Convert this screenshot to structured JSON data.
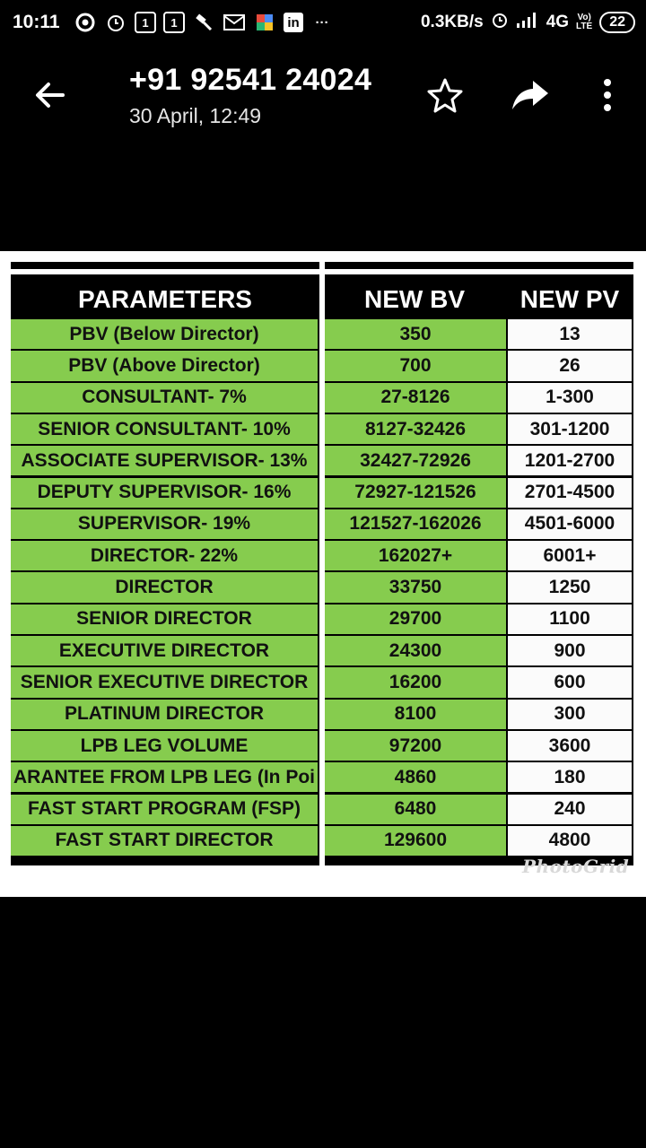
{
  "status_bar": {
    "time": "10:11",
    "box_icon_1": "1",
    "box_icon_2": "1",
    "linkedin": "in",
    "more": "···",
    "speed": "0.3KB/s",
    "network": "4G",
    "lte_top": "Vo)",
    "lte_bottom": "LTE",
    "battery": "22"
  },
  "app_bar": {
    "title": "+91 92541 24024",
    "subtitle": "30 April, 12:49"
  },
  "table": {
    "headers": {
      "parameters": "PARAMETERS",
      "new_bv": "NEW BV",
      "new_pv": "NEW PV"
    },
    "rows": [
      {
        "param": "PBV (Below Director)",
        "bv": "350",
        "pv": "13"
      },
      {
        "param": "PBV (Above Director)",
        "bv": "700",
        "pv": "26"
      },
      {
        "param": "CONSULTANT- 7%",
        "bv": "27-8126",
        "pv": "1-300"
      },
      {
        "param": "SENIOR CONSULTANT- 10%",
        "bv": "8127-32426",
        "pv": "301-1200"
      },
      {
        "param": "ASSOCIATE SUPERVISOR- 13%",
        "bv": "32427-72926",
        "pv": "1201-2700"
      },
      {
        "param": "DEPUTY SUPERVISOR- 16%",
        "bv": "72927-121526",
        "pv": "2701-4500"
      },
      {
        "param": "SUPERVISOR- 19%",
        "bv": "121527-162026",
        "pv": "4501-6000"
      },
      {
        "param": "DIRECTOR- 22%",
        "bv": "162027+",
        "pv": "6001+"
      },
      {
        "param": "DIRECTOR",
        "bv": "33750",
        "pv": "1250"
      },
      {
        "param": "SENIOR DIRECTOR",
        "bv": "29700",
        "pv": "1100"
      },
      {
        "param": "EXECUTIVE DIRECTOR",
        "bv": "24300",
        "pv": "900"
      },
      {
        "param": "SENIOR EXECUTIVE DIRECTOR",
        "bv": "16200",
        "pv": "600"
      },
      {
        "param": "PLATINUM DIRECTOR",
        "bv": "8100",
        "pv": "300"
      },
      {
        "param": "LPB LEG VOLUME",
        "bv": "97200",
        "pv": "3600"
      },
      {
        "param": "ARANTEE FROM LPB LEG (In Poi",
        "bv": "4860",
        "pv": "180"
      },
      {
        "param": "FAST START PROGRAM (FSP)",
        "bv": "6480",
        "pv": "240"
      },
      {
        "param": "FAST START DIRECTOR",
        "bv": "129600",
        "pv": "4800"
      }
    ],
    "watermark": "PhotoGrid"
  },
  "colors": {
    "green": "#86cc4e",
    "header_bg": "#000000",
    "panel_bg": "#ffffff"
  }
}
